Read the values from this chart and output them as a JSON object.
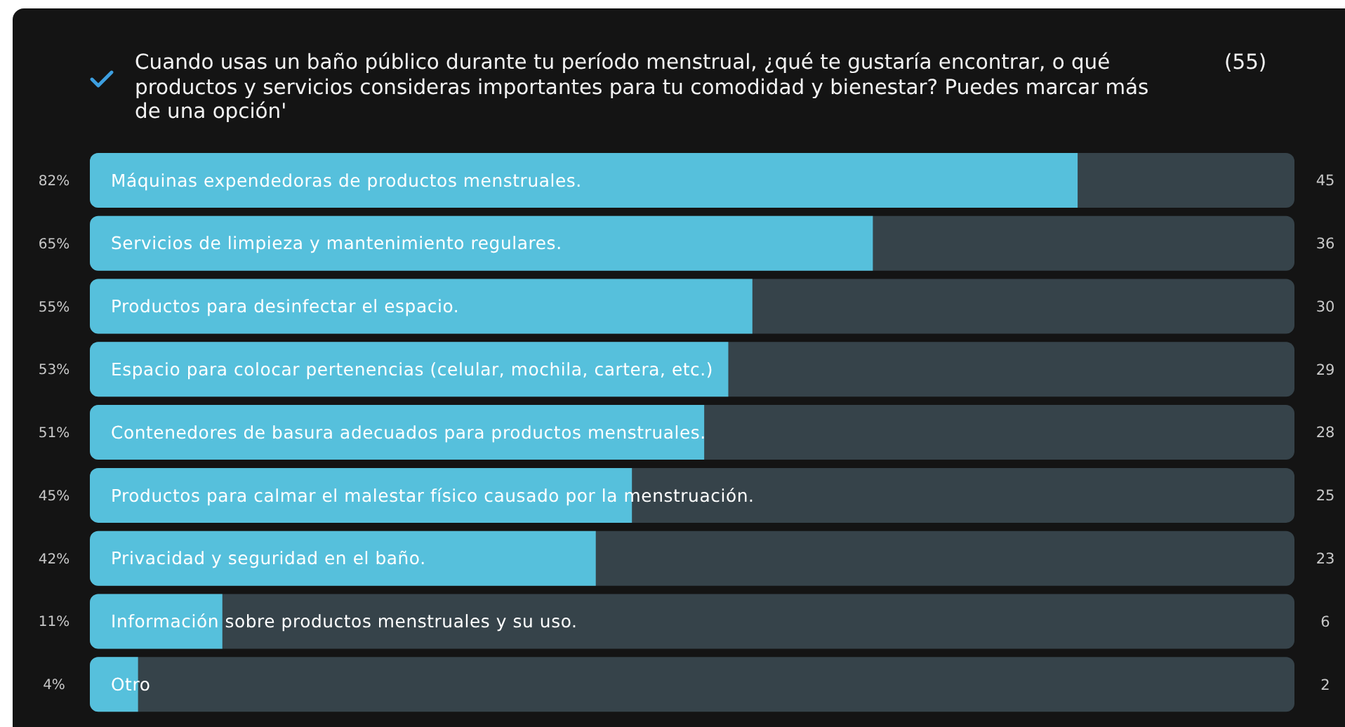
{
  "chart_data": {
    "type": "bar",
    "orientation": "horizontal",
    "title": "Cuando usas un baño público durante tu período menstrual, ¿qué te gustaría encontrar, o qué productos y servicios consideras importantes para tu comodidad y bienestar? Puedes marcar más de una opción'",
    "categories": [
      "Máquinas expendedoras de productos menstruales.",
      "Servicios de limpieza y mantenimiento regulares.",
      "Productos para desinfectar el espacio.",
      "Espacio para colocar pertenencias (celular, mochila, cartera, etc.)",
      "Contenedores de basura adecuados para productos menstruales.",
      "Productos para calmar el malestar físico causado por la menstruación.",
      "Privacidad y seguridad en el baño.",
      "Información sobre productos menstruales y su uso.",
      "Otro"
    ],
    "values": [
      82,
      65,
      55,
      53,
      51,
      45,
      42,
      11,
      4
    ],
    "value_labels": [
      "82%",
      "65%",
      "55%",
      "53%",
      "51%",
      "45%",
      "42%",
      "11%",
      "4%"
    ],
    "annotations": [
      "(55)",
      "45",
      "36",
      "30",
      "29",
      "28",
      "25",
      "23",
      "6",
      "2"
    ],
    "color": "#56c0dc",
    "xlim": [
      0,
      100
    ]
  }
}
